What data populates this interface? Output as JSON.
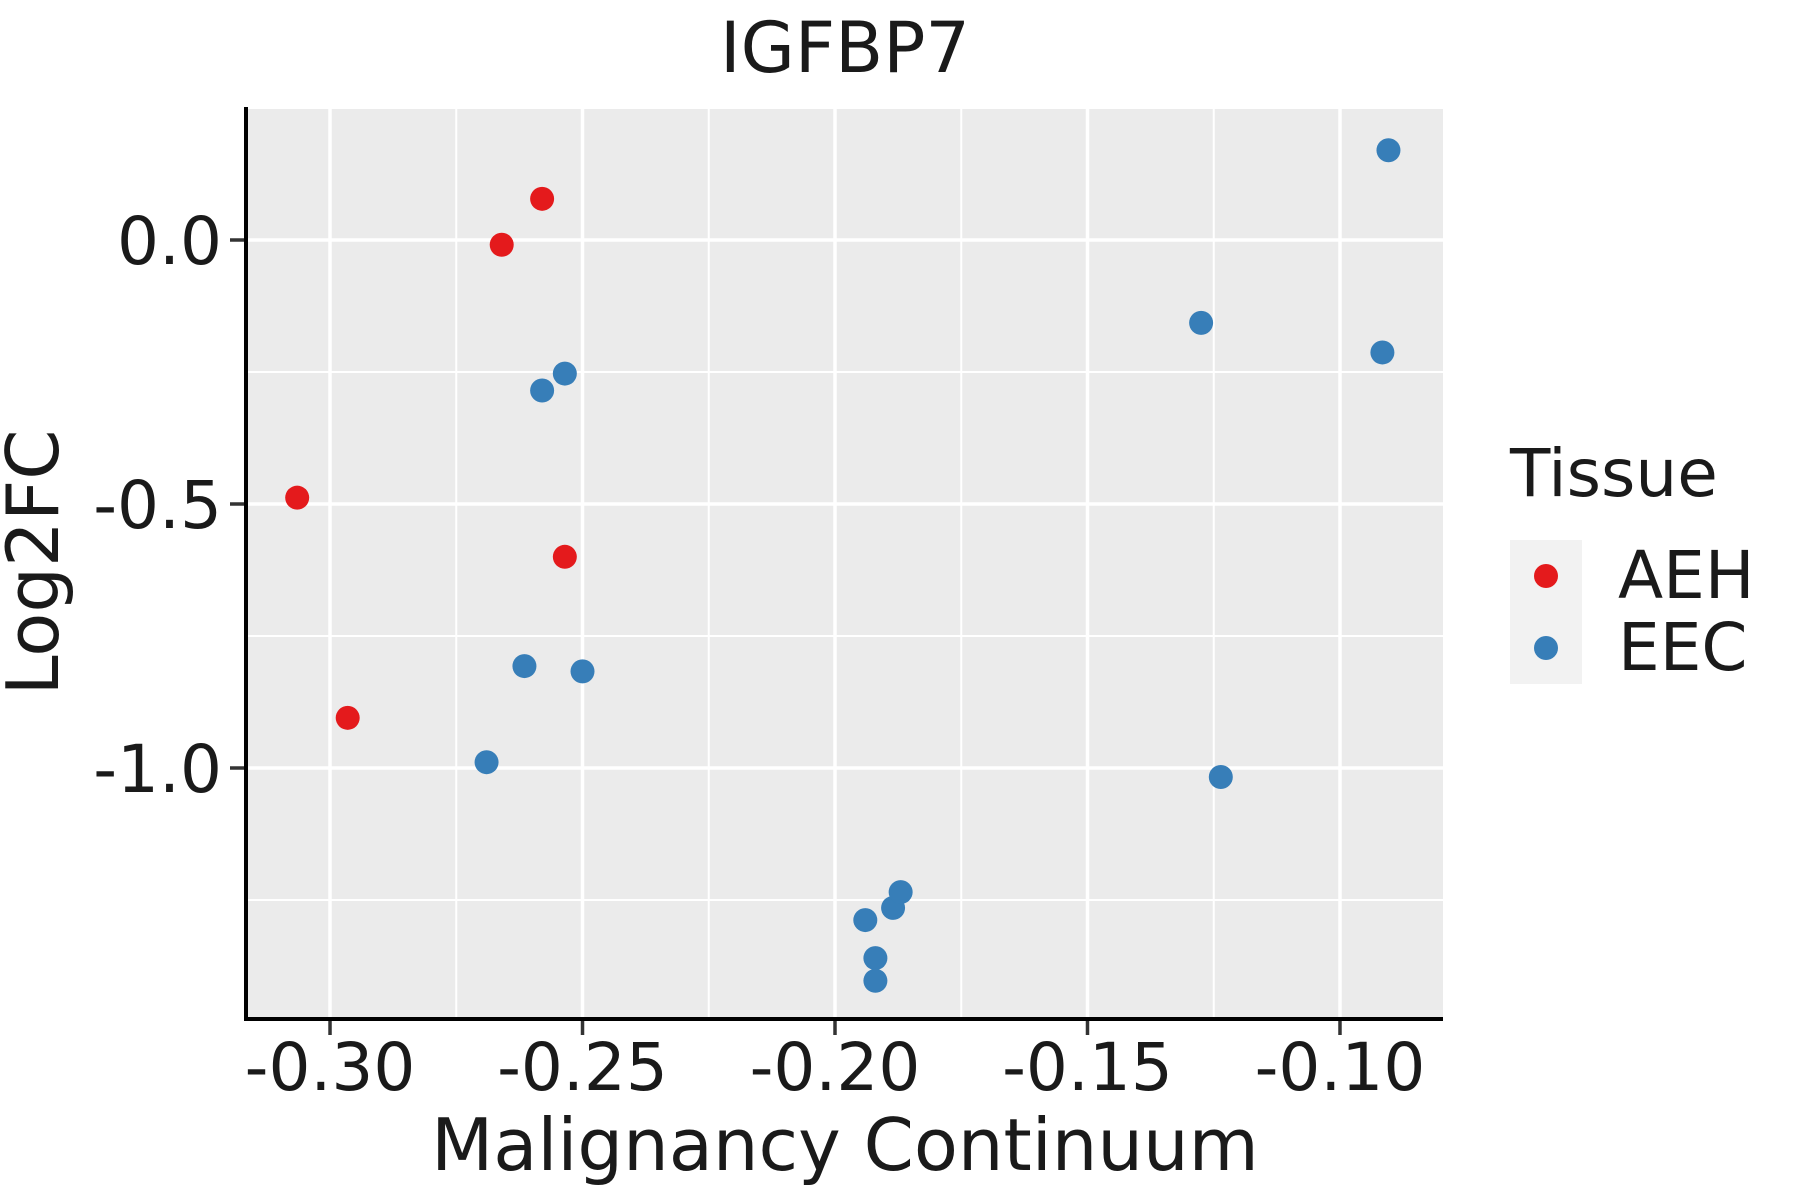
{
  "chart_data": {
    "type": "scatter",
    "title": "IGFBP7",
    "xlabel": "Malignancy Continuum",
    "ylabel": "Log2FC",
    "xlim": [
      -0.31644,
      -0.0796
    ],
    "ylim": [
      -1.47348,
      0.25189
    ],
    "x_ticks": [
      -0.3,
      -0.25,
      -0.2,
      -0.15,
      -0.1
    ],
    "x_tick_labels": [
      "-0.30",
      "-0.25",
      "-0.20",
      "-0.15",
      "-0.10"
    ],
    "y_ticks": [
      0.0,
      -0.5,
      -1.0
    ],
    "y_tick_labels": [
      "0.0",
      "-0.5",
      "-1.0"
    ],
    "x_minor_ticks": [
      -0.275,
      -0.225,
      -0.175,
      -0.125
    ],
    "y_minor_ticks": [
      0.25,
      -0.25,
      -0.75,
      -1.25
    ],
    "grid": true,
    "legend_position": "right",
    "series": [
      {
        "name": "AEH",
        "color": "#E41A1C",
        "points": [
          [
            -0.3065,
            -0.488
          ],
          [
            -0.266,
            -0.009
          ],
          [
            -0.258,
            0.078
          ],
          [
            -0.2535,
            -0.6
          ],
          [
            -0.2965,
            -0.905
          ]
        ]
      },
      {
        "name": "EEC",
        "color": "#377EB8",
        "points": [
          [
            -0.2535,
            -0.253
          ],
          [
            -0.258,
            -0.285
          ],
          [
            -0.2615,
            -0.807
          ],
          [
            -0.25,
            -0.817
          ],
          [
            -0.269,
            -0.989
          ],
          [
            -0.1275,
            -0.157
          ],
          [
            -0.0904,
            0.17
          ],
          [
            -0.0916,
            -0.213
          ],
          [
            -0.1236,
            -1.017
          ],
          [
            -0.194,
            -1.288
          ],
          [
            -0.1885,
            -1.265
          ],
          [
            -0.187,
            -1.235
          ],
          [
            -0.192,
            -1.36
          ],
          [
            -0.192,
            -1.403
          ]
        ]
      }
    ]
  },
  "legend": {
    "title": "Tissue",
    "items": [
      {
        "label": "AEH",
        "color": "#E41A1C"
      },
      {
        "label": "EEC",
        "color": "#377EB8"
      }
    ]
  },
  "styles": {
    "panel_bg": "#EBEBEB",
    "grid_color": "#FFFFFF",
    "axis_line_color": "#000000",
    "tick_mark_color": "#333333",
    "text_color": "#1a1a1a",
    "legend_key_bg": "#F2F2F2",
    "point_red": "#E41A1C",
    "point_blue": "#377EB8"
  }
}
